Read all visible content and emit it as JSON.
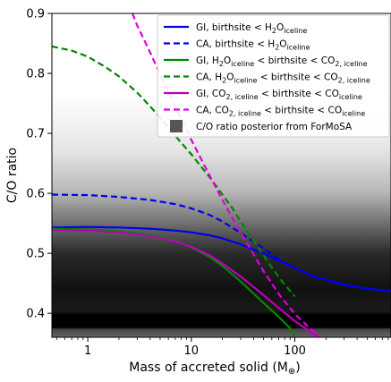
{
  "chart_data": {
    "type": "line",
    "xlabel": "Mass of accreted solid (M",
    "xlabel_unit_symbol": "⊕",
    "xlabel_close": ")",
    "ylabel": "C/O ratio",
    "xscale": "log",
    "xlim": [
      0.45,
      850
    ],
    "ylim": [
      0.36,
      0.9
    ],
    "x_tick_labels": [
      "1",
      "10",
      "100"
    ],
    "x_ticks": [
      1,
      10,
      100
    ],
    "y_tick_labels": [
      "0.4",
      "0.5",
      "0.6",
      "0.7",
      "0.8",
      "0.9"
    ],
    "y_ticks": [
      0.4,
      0.5,
      0.6,
      0.7,
      0.8,
      0.9
    ],
    "grid": false,
    "legend_position": "top-right",
    "posterior": {
      "label": "C/O ratio posterior from ForMoSA",
      "color": "#555555",
      "note_values": "grayscale density band, darkest near 0.37-0.45"
    },
    "series": [
      {
        "name": "GI, birthsite < H2Oiceline",
        "color": "#0000ee",
        "dash": "solid",
        "x": [
          0.45,
          1,
          2,
          4,
          7,
          10,
          15,
          20,
          30,
          50,
          80,
          150,
          300,
          500,
          850
        ],
        "y": [
          0.543,
          0.544,
          0.543,
          0.541,
          0.538,
          0.535,
          0.53,
          0.525,
          0.515,
          0.5,
          0.483,
          0.462,
          0.448,
          0.441,
          0.437
        ]
      },
      {
        "name": "CA, birthsite < H2Oiceline",
        "color": "#0000ee",
        "dash": "dashed",
        "x": [
          0.45,
          1,
          2,
          4,
          7,
          10,
          15,
          20,
          30,
          50,
          80,
          150,
          300,
          500,
          850
        ],
        "y": [
          0.598,
          0.597,
          0.594,
          0.589,
          0.582,
          0.575,
          0.564,
          0.553,
          0.534,
          0.508,
          0.484,
          0.461,
          0.447,
          0.441,
          0.437
        ]
      },
      {
        "name": "GI, H2Oiceline < birthsite < CO2,iceline",
        "color": "#008800",
        "dash": "solid",
        "x": [
          0.45,
          1,
          2,
          4,
          7,
          10,
          15,
          20,
          30,
          40,
          50,
          70,
          90,
          100
        ],
        "y": [
          0.541,
          0.54,
          0.537,
          0.531,
          0.521,
          0.51,
          0.494,
          0.479,
          0.453,
          0.433,
          0.417,
          0.394,
          0.375,
          0.362
        ]
      },
      {
        "name": "CA, H2Oiceline < birthsite < CO2,iceline",
        "color": "#008800",
        "dash": "dashed",
        "x": [
          0.45,
          0.7,
          1,
          1.5,
          2,
          3,
          4,
          5,
          7,
          10,
          15,
          20,
          25,
          30,
          40,
          50,
          70,
          100
        ],
        "y": [
          0.845,
          0.838,
          0.828,
          0.81,
          0.795,
          0.768,
          0.745,
          0.726,
          0.696,
          0.665,
          0.627,
          0.598,
          0.575,
          0.553,
          0.521,
          0.496,
          0.46,
          0.428
        ]
      },
      {
        "name": "GI, CO2,iceline < birthsite < COiceline",
        "color": "#bb00bb",
        "dash": "solid",
        "x": [
          0.45,
          1,
          2,
          4,
          7,
          10,
          15,
          20,
          30,
          40,
          50,
          70,
          100,
          150,
          170
        ],
        "y": [
          0.539,
          0.538,
          0.535,
          0.529,
          0.52,
          0.511,
          0.497,
          0.483,
          0.461,
          0.444,
          0.43,
          0.409,
          0.387,
          0.366,
          0.36
        ]
      },
      {
        "name": "CA, CO2,iceline < birthsite < COiceline",
        "color": "#dd00dd",
        "dash": "dashed",
        "x": [
          2.7,
          3,
          4,
          5,
          7,
          10,
          15,
          20,
          25,
          30,
          40,
          50,
          70,
          100,
          150,
          180
        ],
        "y": [
          0.9,
          0.88,
          0.835,
          0.798,
          0.745,
          0.689,
          0.63,
          0.589,
          0.559,
          0.535,
          0.498,
          0.47,
          0.432,
          0.399,
          0.37,
          0.36
        ]
      }
    ]
  },
  "legend": {
    "items": [
      {
        "pre": "GI, birthsite < H",
        "sub1": "2",
        "mid": "O",
        "sub2": "iceline",
        "mid2": "",
        "sub3": "",
        "mid3": "",
        "sub4": ""
      },
      {
        "pre": "CA, birthsite < H",
        "sub1": "2",
        "mid": "O",
        "sub2": "iceline",
        "mid2": "",
        "sub3": "",
        "mid3": "",
        "sub4": ""
      },
      {
        "pre": "GI, H",
        "sub1": "2",
        "mid": "O",
        "sub2": "iceline",
        "mid2": " < birthsite < CO",
        "sub3": "2, iceline",
        "mid3": "",
        "sub4": ""
      },
      {
        "pre": "CA, H",
        "sub1": "2",
        "mid": "O",
        "sub2": "iceline",
        "mid2": " < birthsite < CO",
        "sub3": "2, iceline",
        "mid3": "",
        "sub4": ""
      },
      {
        "pre": "GI, CO",
        "sub1": "2, iceline",
        "mid": " < birthsite < CO",
        "sub2": "iceline",
        "mid2": "",
        "sub3": "",
        "mid3": "",
        "sub4": ""
      },
      {
        "pre": "CA, CO",
        "sub1": "2, iceline",
        "mid": " < birthsite < CO",
        "sub2": "iceline",
        "mid2": "",
        "sub3": "",
        "mid3": "",
        "sub4": ""
      },
      {
        "pre": "C/O ratio posterior from ForMoSA",
        "sub1": "",
        "mid": "",
        "sub2": "",
        "mid2": "",
        "sub3": "",
        "mid3": "",
        "sub4": ""
      }
    ]
  }
}
